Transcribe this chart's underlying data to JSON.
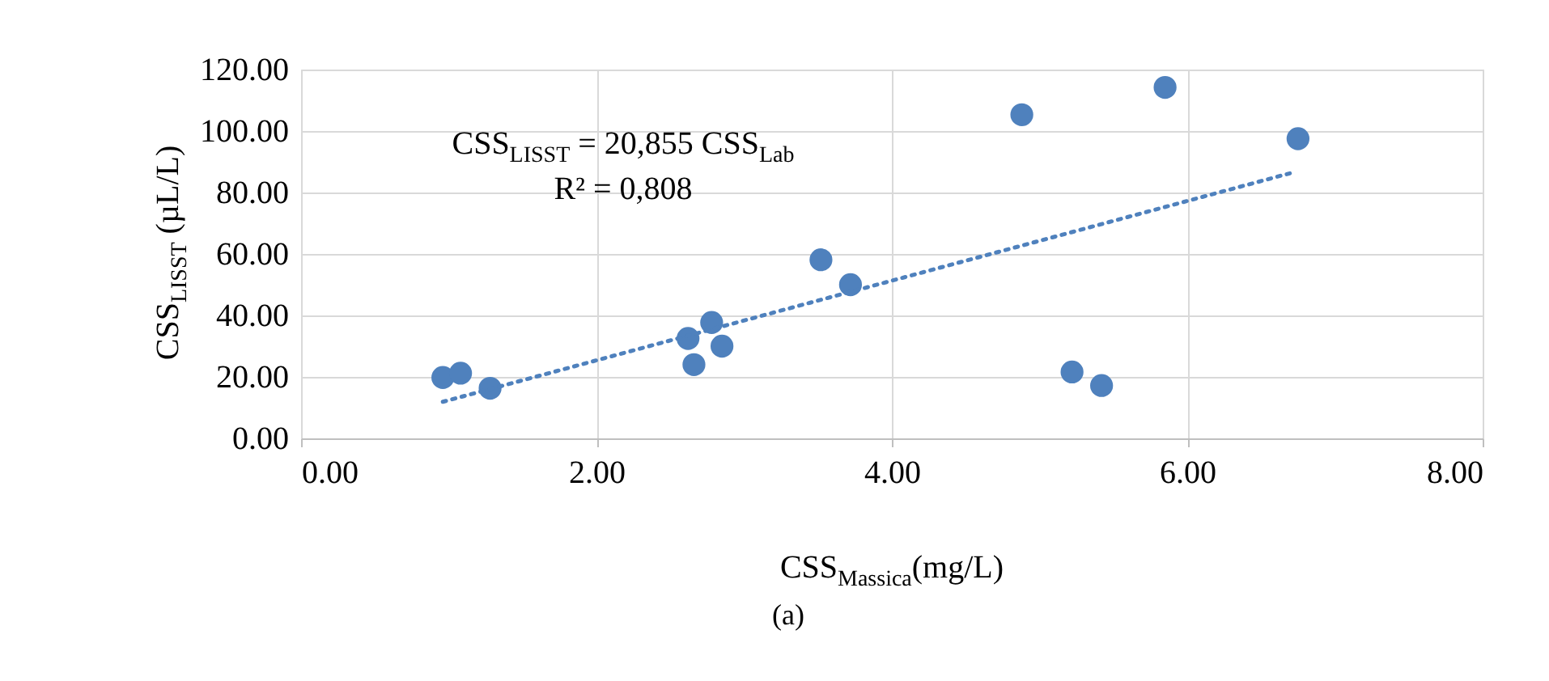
{
  "chart_data": {
    "type": "scatter",
    "xlabel": "CSS$_{Massica}$(mg/L)",
    "ylabel": "CSS$_{LISST}$ (µL/L)",
    "x": [
      0.96,
      1.08,
      1.28,
      2.62,
      2.66,
      2.78,
      2.85,
      3.52,
      3.72,
      4.88,
      5.22,
      5.42,
      5.85,
      6.75
    ],
    "series": [
      {
        "color": "#4f81bd",
        "values": [
          19.8,
          21.2,
          16.3,
          32.5,
          24.0,
          37.7,
          30.0,
          58.1,
          50.0,
          105.3,
          21.6,
          17.2,
          114.2,
          97.5
        ]
      },
      {
        "type": "line",
        "color": "#4f81bd",
        "line_style": "dotted",
        "marker": "none",
        "x": [
          0.96,
          6.73
        ],
        "values": [
          11.9,
          86.7
        ]
      }
    ],
    "xlim": [
      0,
      8
    ],
    "ylim": [
      0,
      120
    ],
    "xticks": [
      {
        "value": 0,
        "label": "0.00"
      },
      {
        "value": 2,
        "label": "2.00"
      },
      {
        "value": 4,
        "label": "4.00"
      },
      {
        "value": 6,
        "label": "6.00"
      },
      {
        "value": 8,
        "label": "8.00"
      }
    ],
    "yticks": [
      {
        "value": 0,
        "label": "0.00"
      },
      {
        "value": 20,
        "label": "20.00"
      },
      {
        "value": 40,
        "label": "40.00"
      },
      {
        "value": 60,
        "label": "60.00"
      },
      {
        "value": 80,
        "label": "80.00"
      },
      {
        "value": 100,
        "label": "100.00"
      },
      {
        "value": 120,
        "label": "120.00"
      }
    ],
    "grid": true,
    "marker": "circle",
    "annotations": [
      "CSS$_{LISST}$ = 20,855 CSS$_{Lab}$",
      "R² = 0,808",
      "(a)"
    ]
  }
}
